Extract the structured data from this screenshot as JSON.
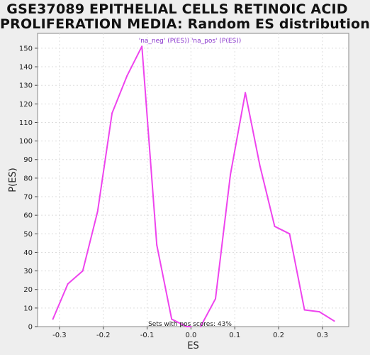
{
  "title_line1": "GSE37089 EPITHELIAL CELLS RETINOIC ACID",
  "title_line2": "PROLIFERATION MEDIA: Random ES distribution",
  "chart_data": {
    "type": "line",
    "title": "GSE37089 EPITHELIAL CELLS RETINOIC ACID PROLIFERATION MEDIA: Random ES distribution",
    "xlabel": "ES",
    "ylabel": "P(ES)",
    "xlim": [
      -0.35,
      0.36
    ],
    "ylim": [
      0,
      158
    ],
    "xticks": [
      -0.3,
      -0.2,
      -0.1,
      0.0,
      0.1,
      0.2,
      0.3
    ],
    "xtick_labels": [
      "-0.3",
      "-0.2",
      "-0.1",
      "0.0",
      "0.1",
      "0.2",
      "0.3"
    ],
    "yticks": [
      0,
      10,
      20,
      30,
      40,
      50,
      60,
      70,
      80,
      90,
      100,
      110,
      120,
      130,
      140,
      150
    ],
    "ytick_labels": [
      "0",
      "10",
      "20",
      "30",
      "40",
      "50",
      "60",
      "70",
      "80",
      "90",
      "100",
      "110",
      "120",
      "130",
      "140",
      "150"
    ],
    "grid": true,
    "legend_text": "'na_neg' (P(ES)) 'na_pos' (P(ES))",
    "annotation": "Sets with pos scores: 43%",
    "series": [
      {
        "color": "#ee44ee",
        "x": [
          -0.315,
          -0.281,
          -0.247,
          -0.213,
          -0.18,
          -0.146,
          -0.112,
          -0.078,
          -0.044,
          -0.01,
          0.0
        ],
        "y": [
          4,
          23,
          30,
          62,
          115,
          135,
          151,
          44,
          4,
          0,
          0
        ]
      },
      {
        "color": "#ee44ee",
        "x": [
          0.022,
          0.056,
          0.09,
          0.124,
          0.157,
          0.191,
          0.225,
          0.259,
          0.293,
          0.327
        ],
        "y": [
          0,
          15,
          82,
          126,
          87,
          54,
          50,
          9,
          8,
          3
        ]
      }
    ]
  }
}
